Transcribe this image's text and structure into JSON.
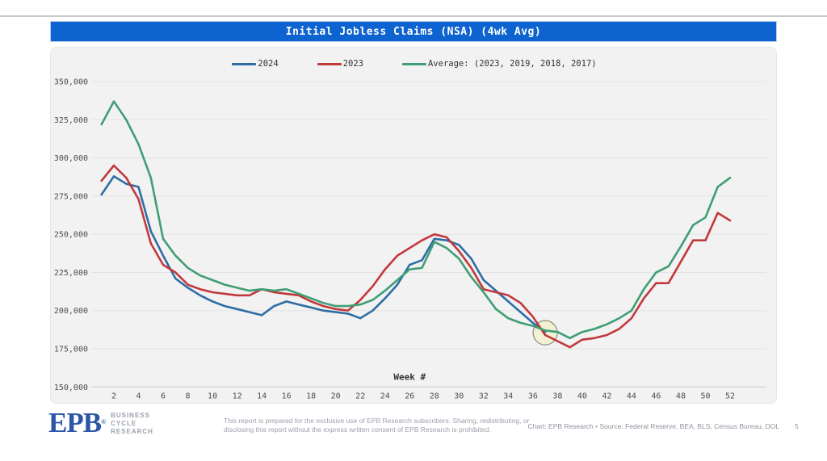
{
  "header": {
    "title": "Initial Jobless Claims (NSA) (4wk Avg)",
    "bg_color": "#0d63cf",
    "text_color": "#ffffff"
  },
  "chart_data": {
    "type": "line",
    "title": "Initial Jobless Claims (NSA) (4wk Avg)",
    "xlabel": "Week #",
    "ylabel": "",
    "xlim": [
      1,
      53
    ],
    "ylim": [
      150000,
      350000
    ],
    "x_ticks": [
      2,
      4,
      6,
      8,
      10,
      12,
      14,
      16,
      18,
      20,
      22,
      24,
      26,
      28,
      30,
      32,
      34,
      36,
      38,
      40,
      42,
      44,
      46,
      48,
      50,
      52
    ],
    "y_ticks": [
      150000,
      175000,
      200000,
      225000,
      250000,
      275000,
      300000,
      325000,
      350000
    ],
    "grid": "horizontal-only",
    "legend_position": "top-center",
    "panel_bg": "#f2f2f2",
    "grid_color": "#e3e3e3",
    "axis_color": "#cccccc",
    "tick_text_color": "#4d4d4d",
    "series": [
      {
        "name": "2024",
        "color": "#2e6da4",
        "start_week": 1,
        "values": [
          276000,
          288000,
          283000,
          281000,
          252000,
          236000,
          221000,
          215000,
          210000,
          206000,
          203000,
          201000,
          199000,
          197000,
          203000,
          206000,
          204000,
          202000,
          200000,
          199000,
          198000,
          195000,
          200000,
          208000,
          217000,
          230000,
          233000,
          247000,
          246000,
          243000,
          234000,
          220000,
          213000,
          206000,
          199000,
          192000,
          186000
        ]
      },
      {
        "name": "2023",
        "color": "#c2393d",
        "start_week": 1,
        "values": [
          285000,
          295000,
          287000,
          273000,
          244000,
          230000,
          225000,
          217000,
          214000,
          212000,
          211000,
          210000,
          210000,
          214000,
          212000,
          211000,
          210000,
          206000,
          203000,
          201000,
          200000,
          207000,
          216000,
          227000,
          236000,
          241000,
          246000,
          250000,
          248000,
          239000,
          228000,
          214000,
          212000,
          210000,
          205000,
          196000,
          184000,
          180000,
          176000,
          181000,
          182000,
          184000,
          188000,
          195000,
          208000,
          218000,
          218000,
          232000,
          246000,
          246000,
          264000,
          259000
        ]
      },
      {
        "name": "Average: (2023, 2019, 2018, 2017)",
        "color": "#3f9e74",
        "start_week": 1,
        "values": [
          322000,
          337000,
          325000,
          309000,
          287000,
          247000,
          236000,
          228000,
          223000,
          220000,
          217000,
          215000,
          213000,
          214000,
          213000,
          214000,
          211000,
          208000,
          205000,
          203000,
          203000,
          204000,
          207000,
          213000,
          220000,
          227000,
          228000,
          245000,
          241000,
          234000,
          222000,
          212000,
          201000,
          195000,
          192000,
          190000,
          187000,
          186000,
          182000,
          186000,
          188000,
          191000,
          195000,
          200000,
          214000,
          225000,
          229000,
          242000,
          256000,
          261000,
          281000,
          287000
        ]
      }
    ],
    "annotation": {
      "shape": "circle",
      "week": 37,
      "value": 185500,
      "radius": 15,
      "stroke_color": "#8d8d75",
      "fill_color": "#f3f0b8",
      "fill_opacity": 0.5
    }
  },
  "footer": {
    "logo_text": "EPB",
    "logo_reg": "®",
    "logo_sub_1": "BUSINESS",
    "logo_sub_2": "CYCLE",
    "logo_sub_3": "RESEARCH",
    "disclaimer_line_1": "This report is prepared for the exclusive use of EPB Research subscribers. Sharing, redistributing, or",
    "disclaimer_line_2": "disclosing this report without the express written consent of EPB Research is prohibited.",
    "credit": "Chart: EPB Research  •  Source: Federal Reserve, BEA, BLS, Census Bureau, DOL",
    "page_number": "5"
  }
}
